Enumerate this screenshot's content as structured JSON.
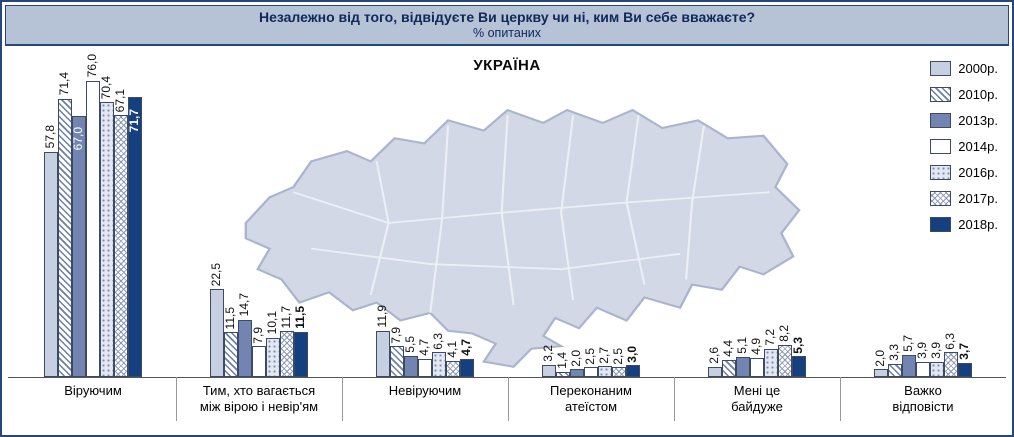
{
  "header": {
    "title": "Незалежно від того, відвідуєте Ви церкву чи ні, ким Ви себе вважаєте?",
    "subtitle": "% опитаних"
  },
  "colors": {
    "frame_border": "#27477c",
    "header_bg": "#b6c2d6",
    "header_text": "#10285a",
    "map_fill": "#d2d8e6",
    "series_2000": "#c7d0e2",
    "series_2013": "#7285b1",
    "series_2018": "#15407f"
  },
  "chart_data": {
    "type": "bar",
    "title": "УКРАЇНА",
    "ylabel": "% опитаних",
    "ylim": [
      0,
      80
    ],
    "grid": false,
    "legend_position": "top-right",
    "label_format": "comma-decimal",
    "categories": [
      [
        "Віруючим"
      ],
      [
        "Тим, хто вагається",
        "між вірою і невір'ям"
      ],
      [
        "Невіруючим"
      ],
      [
        "Переконаним",
        "атеїстом"
      ],
      [
        "Мені це",
        "байдуже"
      ],
      [
        "Важко",
        "відповісти"
      ]
    ],
    "series": [
      {
        "id": "2000",
        "name": "2000р.",
        "dark": false,
        "bold": false,
        "values": [
          57.8,
          22.5,
          11.9,
          3.2,
          2.6,
          2.0
        ]
      },
      {
        "id": "2010",
        "name": "2010р.",
        "dark": false,
        "bold": false,
        "values": [
          71.4,
          11.5,
          7.9,
          1.4,
          4.4,
          3.3
        ]
      },
      {
        "id": "2013",
        "name": "2013р.",
        "dark": true,
        "bold": false,
        "values": [
          67.0,
          14.7,
          5.5,
          2.0,
          5.1,
          5.7
        ]
      },
      {
        "id": "2014",
        "name": "2014р.",
        "dark": false,
        "bold": false,
        "values": [
          76.0,
          7.9,
          4.7,
          2.5,
          4.9,
          3.9
        ]
      },
      {
        "id": "2016",
        "name": "2016р.",
        "dark": false,
        "bold": false,
        "values": [
          70.4,
          10.1,
          6.3,
          2.7,
          7.2,
          3.9
        ]
      },
      {
        "id": "2017",
        "name": "2017р.",
        "dark": false,
        "bold": false,
        "values": [
          67.1,
          11.7,
          4.1,
          2.5,
          8.2,
          6.3
        ]
      },
      {
        "id": "2018",
        "name": "2018р.",
        "dark": true,
        "bold": true,
        "values": [
          71.7,
          11.5,
          4.7,
          3.0,
          5.3,
          3.7
        ]
      }
    ]
  }
}
